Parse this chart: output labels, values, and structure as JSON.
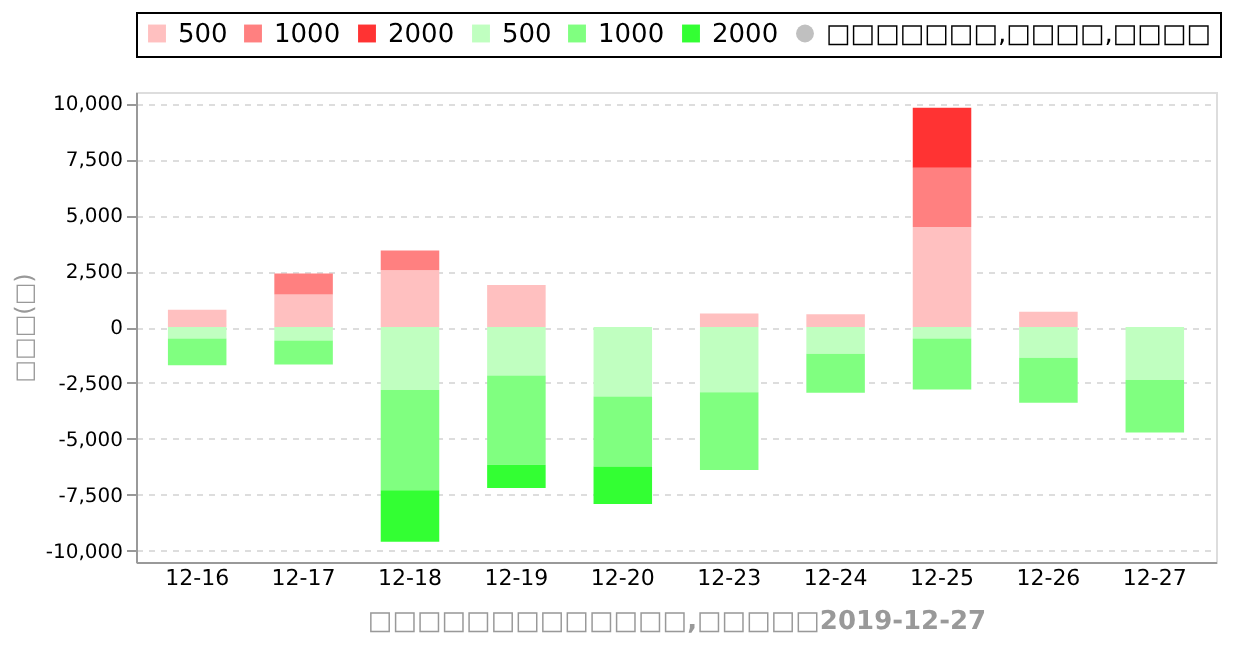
{
  "chart_data": {
    "type": "bar",
    "stacked": true,
    "categories": [
      "12-16",
      "12-17",
      "12-18",
      "12-19",
      "12-20",
      "12-23",
      "12-24",
      "12-25",
      "12-26",
      "12-27"
    ],
    "series": [
      {
        "name": "500",
        "color": "#ffc0c0",
        "values": [
          770,
          1450,
          2540,
          1880,
          null,
          600,
          570,
          4470,
          680,
          null
        ]
      },
      {
        "name": "1000",
        "color": "#ff8080",
        "values": [
          null,
          940,
          880,
          null,
          null,
          null,
          null,
          2650,
          null,
          null
        ]
      },
      {
        "name": "2000",
        "color": "#ff3333",
        "values": [
          null,
          null,
          null,
          null,
          null,
          null,
          null,
          2680,
          null,
          null
        ]
      },
      {
        "name": "500",
        "color": "#c0ffc0",
        "values": [
          -510,
          -600,
          -2820,
          -2170,
          -3100,
          -2910,
          -1200,
          -510,
          -1370,
          -2370
        ]
      },
      {
        "name": "1000",
        "color": "#80ff80",
        "values": [
          -1200,
          -1080,
          -4470,
          -3990,
          -3130,
          -3480,
          -1740,
          -2280,
          -2020,
          -2340
        ]
      },
      {
        "name": "2000",
        "color": "#33ff33",
        "values": [
          null,
          null,
          -2310,
          -1030,
          -1680,
          null,
          null,
          null,
          null,
          null
        ]
      },
      {
        "name": "□□□□□□□,□□□□,□□□□",
        "color": "#c0c0c0",
        "marker": "circle",
        "values": [
          null,
          null,
          null,
          null,
          null,
          null,
          null,
          null,
          null,
          null
        ]
      }
    ],
    "ylim": [
      -10500,
      10500
    ],
    "yticks": [
      {
        "value": -10000,
        "label": "-10,000"
      },
      {
        "value": -7500,
        "label": "-7,500"
      },
      {
        "value": -5000,
        "label": "-5,000"
      },
      {
        "value": -2500,
        "label": "-2,500"
      },
      0,
      {
        "value": 2500,
        "label": "2,500"
      },
      {
        "value": 5000,
        "label": "5,000"
      },
      {
        "value": 7500,
        "label": "7,500"
      },
      {
        "value": 10000,
        "label": "10,000"
      }
    ],
    "ylabel": "□□□(□)",
    "xlabel": "□□□□□□□□□□□□□,□□□□□2019-12-27",
    "grid": "y",
    "legend": "top"
  }
}
